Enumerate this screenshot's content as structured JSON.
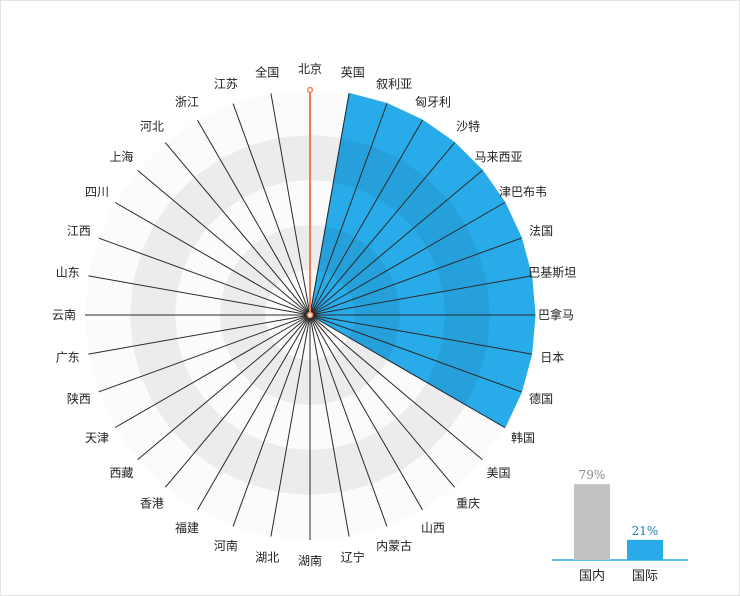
{
  "chart_data": [
    {
      "type": "radar",
      "categories": [
        "北京",
        "英国",
        "叙利亚",
        "匈牙利",
        "沙特",
        "马来西亚",
        "津巴布韦",
        "法国",
        "巴基斯坦",
        "巴拿马",
        "日本",
        "德国",
        "韩国",
        "美国",
        "重庆",
        "山西",
        "内蒙古",
        "辽宁",
        "湖南",
        "湖北",
        "河南",
        "福建",
        "香港",
        "西藏",
        "天津",
        "陕西",
        "广东",
        "云南",
        "山东",
        "江西",
        "四川",
        "上海",
        "河北",
        "浙江",
        "江苏",
        "全国"
      ],
      "series": [
        {
          "values": [
            100,
            0,
            0,
            0,
            0,
            0,
            0,
            0,
            0,
            0,
            0,
            0,
            0,
            0,
            0,
            0,
            0,
            0,
            0,
            0,
            0,
            0,
            0,
            0,
            0,
            0,
            0,
            0,
            0,
            0,
            0,
            0,
            0,
            0,
            0,
            0
          ],
          "color": "#f07c52"
        },
        {
          "values": [
            0,
            100,
            100,
            100,
            100,
            100,
            100,
            100,
            100,
            100,
            100,
            100,
            100,
            0,
            0,
            0,
            0,
            0,
            0,
            0,
            0,
            0,
            0,
            0,
            0,
            0,
            0,
            0,
            0,
            0,
            0,
            0,
            0,
            0,
            0,
            0
          ],
          "color": "#29abe9"
        }
      ],
      "rings": 5,
      "ring_colors": [
        "#fbfbfb",
        "#ececec"
      ],
      "grid": true
    },
    {
      "type": "bar",
      "categories": [
        "国内",
        "国际"
      ],
      "values": [
        79,
        21
      ],
      "value_labels": [
        "79%",
        "21%"
      ],
      "colors": [
        "#c1c1c1",
        "#29abe9"
      ],
      "label_colors": [
        "#8a8a8a",
        "#1a7fb8"
      ],
      "ylim": [
        0,
        100
      ]
    }
  ]
}
